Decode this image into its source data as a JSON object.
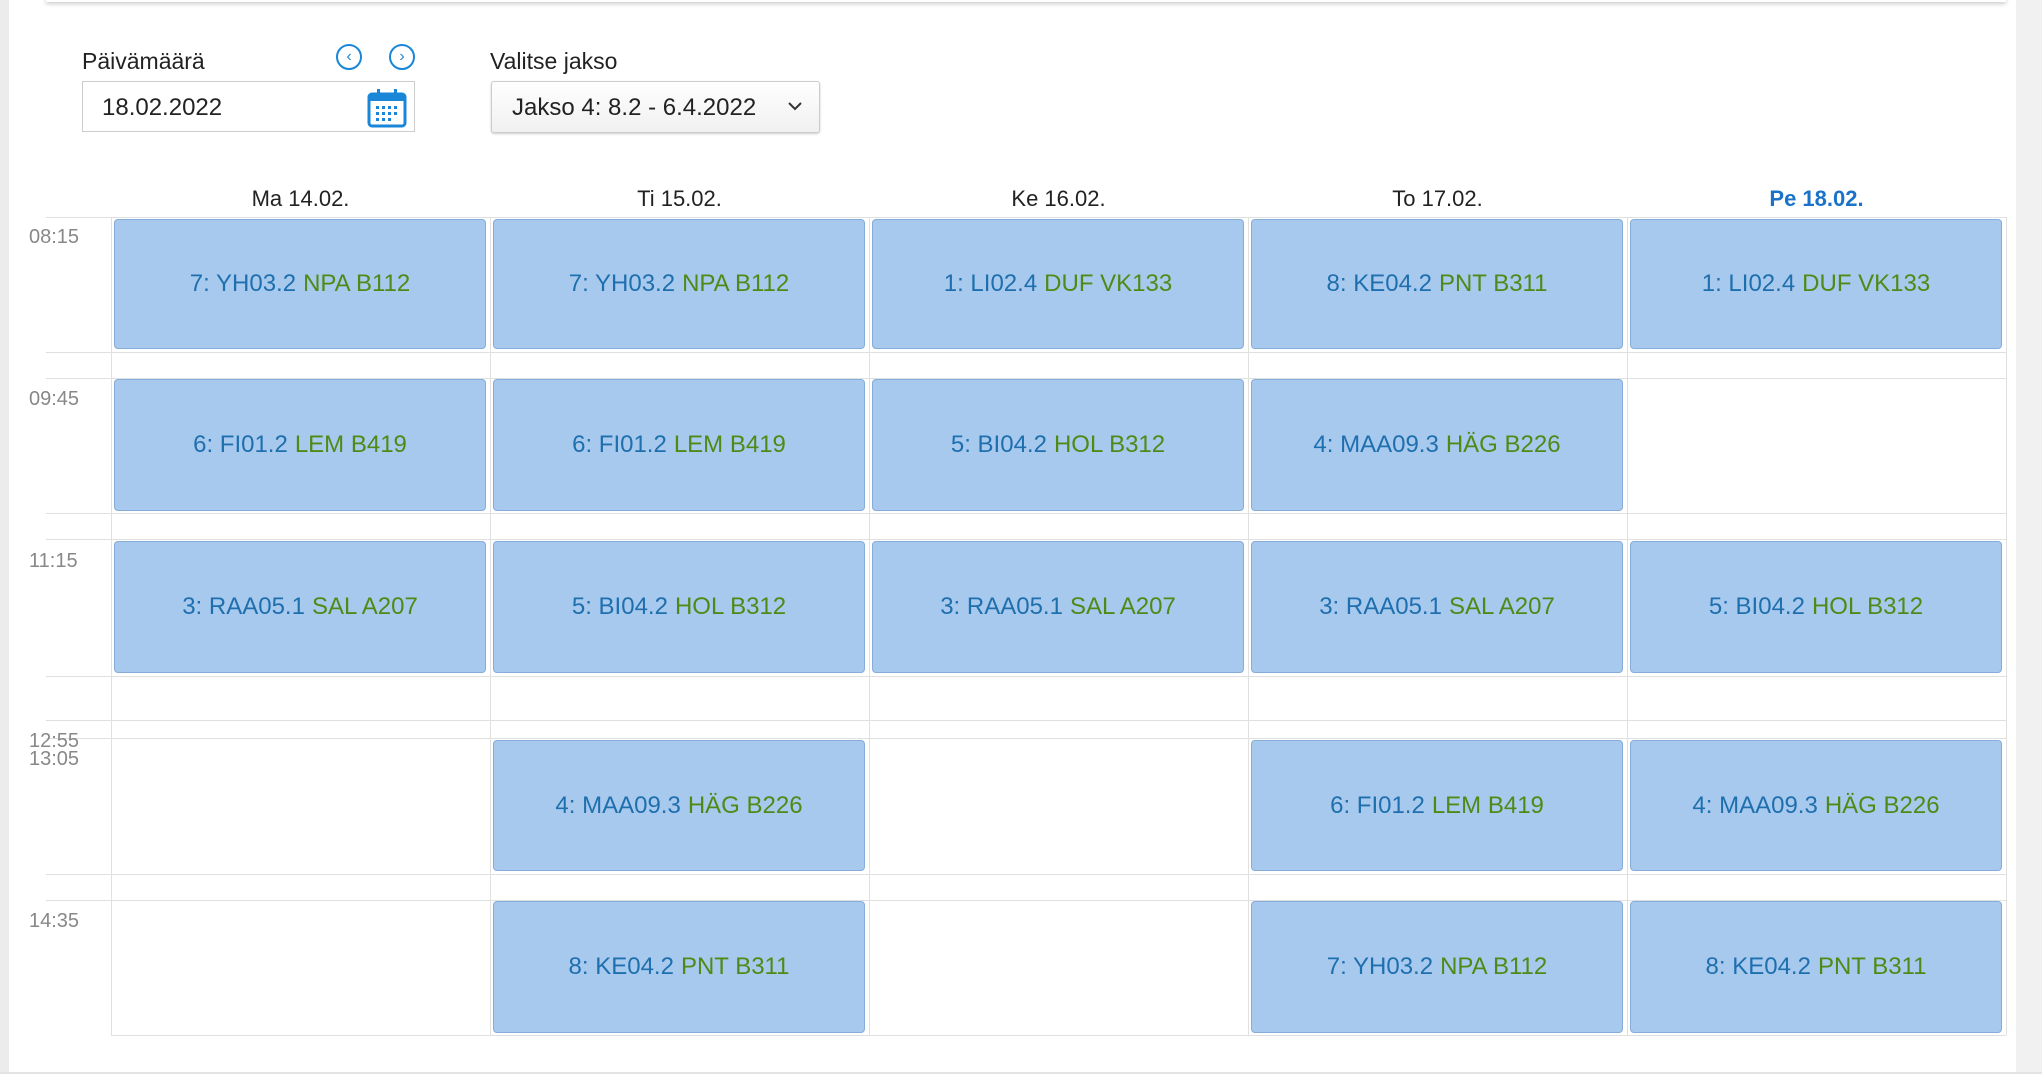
{
  "date_picker": {
    "label": "Päivämäärä",
    "value": "18.02.2022",
    "prev_icon": "chevron-left-circle-icon",
    "next_icon": "chevron-right-circle-icon",
    "calendar_icon": "calendar-icon"
  },
  "period_select": {
    "label": "Valitse jakso",
    "value": "Jakso 4: 8.2 - 6.4.2022"
  },
  "colors": {
    "event_bg": "#a8c9ee",
    "event_code": "#1e6fae",
    "event_teacher_room": "#4f8a16",
    "today": "#1a73c8"
  },
  "times": [
    "08:15",
    "09:45",
    "11:15",
    "12:55",
    "13:05",
    "14:35"
  ],
  "days": [
    {
      "label": "Ma 14.02.",
      "today": false,
      "events": [
        {
          "code": "7: YH03.2",
          "info": "NPA B112"
        },
        {
          "code": "6: FI01.2",
          "info": "LEM B419"
        },
        {
          "code": "3: RAA05.1",
          "info": "SAL A207"
        },
        null,
        null
      ]
    },
    {
      "label": "Ti 15.02.",
      "today": false,
      "events": [
        {
          "code": "7: YH03.2",
          "info": "NPA B112"
        },
        {
          "code": "6: FI01.2",
          "info": "LEM B419"
        },
        {
          "code": "5: BI04.2",
          "info": "HOL B312"
        },
        {
          "code": "4: MAA09.3",
          "info": "HÄG B226"
        },
        {
          "code": "8: KE04.2",
          "info": "PNT B311"
        }
      ]
    },
    {
      "label": "Ke 16.02.",
      "today": false,
      "events": [
        {
          "code": "1: LI02.4",
          "info": "DUF VK133"
        },
        {
          "code": "5: BI04.2",
          "info": "HOL B312"
        },
        {
          "code": "3: RAA05.1",
          "info": "SAL A207"
        },
        null,
        null
      ]
    },
    {
      "label": "To 17.02.",
      "today": false,
      "events": [
        {
          "code": "8: KE04.2",
          "info": "PNT B311"
        },
        {
          "code": "4: MAA09.3",
          "info": "HÄG B226"
        },
        {
          "code": "3: RAA05.1",
          "info": "SAL A207"
        },
        {
          "code": "6: FI01.2",
          "info": "LEM B419"
        },
        {
          "code": "7: YH03.2",
          "info": "NPA B112"
        }
      ]
    },
    {
      "label": "Pe 18.02.",
      "today": true,
      "events": [
        {
          "code": "1: LI02.4",
          "info": "DUF VK133"
        },
        null,
        {
          "code": "5: BI04.2",
          "info": "HOL B312"
        },
        {
          "code": "4: MAA09.3",
          "info": "HÄG B226"
        },
        {
          "code": "8: KE04.2",
          "info": "PNT B311"
        }
      ]
    }
  ]
}
